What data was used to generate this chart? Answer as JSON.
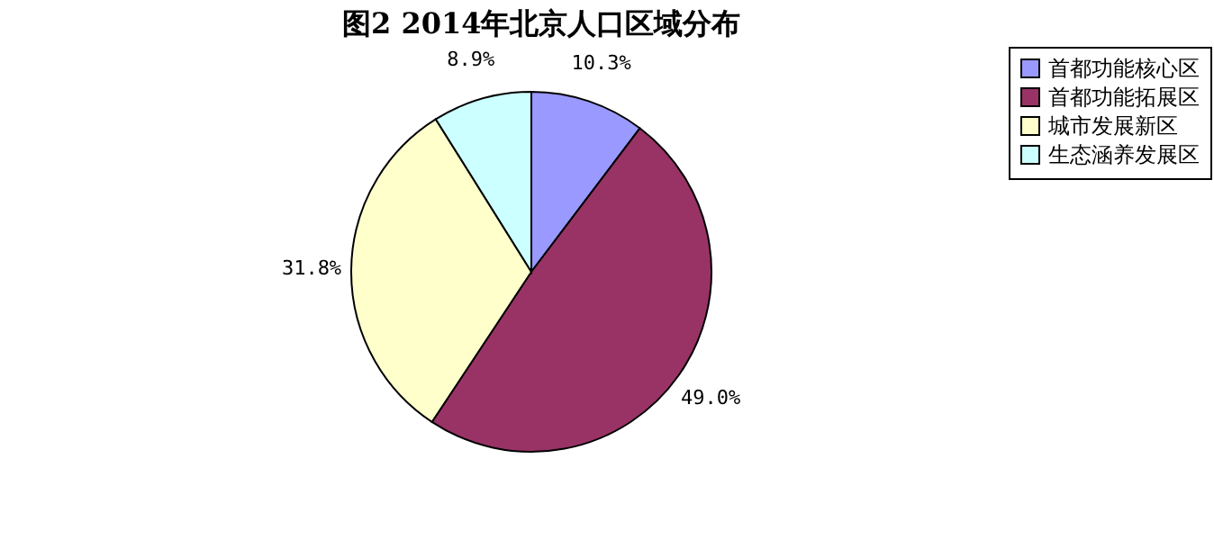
{
  "chart_data": {
    "type": "pie",
    "title": "图2 2014年北京人口区域分布",
    "categories": [
      "首都功能核心区",
      "首都功能拓展区",
      "城市发展新区",
      "生态涵养发展区"
    ],
    "values": [
      10.3,
      49.0,
      31.8,
      8.9
    ],
    "colors": [
      "#9999ff",
      "#993366",
      "#ffffcc",
      "#ccffff"
    ],
    "value_labels": [
      "10.3%",
      "49.0%",
      "31.8%",
      "8.9%"
    ],
    "legend": "right"
  }
}
